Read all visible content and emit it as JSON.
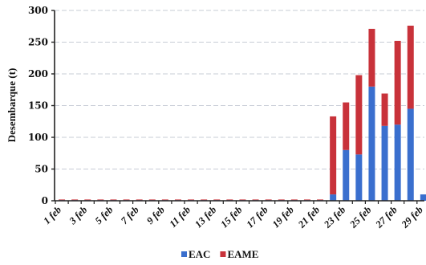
{
  "chart_data": {
    "type": "bar",
    "stacked": true,
    "title": "",
    "xlabel": "",
    "ylabel": "Desembarque (t)",
    "ylim": [
      0,
      300
    ],
    "yticks": [
      0,
      50,
      100,
      150,
      200,
      250,
      300
    ],
    "grid": true,
    "legend_position": "bottom",
    "x_tick_labels": [
      "1 feb",
      "3 feb",
      "5 feb",
      "7 feb",
      "9 feb",
      "11 feb",
      "13 feb",
      "15 feb",
      "17 feb",
      "19 feb",
      "21 feb",
      "23 feb",
      "25 feb",
      "27 feb",
      "29 feb"
    ],
    "categories": [
      "1 feb",
      "2 feb",
      "3 feb",
      "4 feb",
      "5 feb",
      "6 feb",
      "7 feb",
      "8 feb",
      "9 feb",
      "10 feb",
      "11 feb",
      "12 feb",
      "13 feb",
      "14 feb",
      "15 feb",
      "16 feb",
      "17 feb",
      "18 feb",
      "19 feb",
      "20 feb",
      "21 feb",
      "22 feb",
      "23 feb",
      "24 feb",
      "25 feb",
      "26 feb",
      "27 feb",
      "28 feb",
      "29 feb"
    ],
    "series": [
      {
        "name": "EAC",
        "color": "#3a6fce",
        "values": [
          1,
          1,
          1,
          1,
          1,
          1,
          1,
          1,
          1,
          1,
          1,
          1,
          1,
          1,
          1,
          1,
          1,
          1,
          1,
          1,
          1,
          10,
          80,
          73,
          180,
          118,
          120,
          145,
          10
        ]
      },
      {
        "name": "EAME",
        "color": "#c8323a",
        "values": [
          1,
          1,
          1,
          1,
          1,
          1,
          1,
          1,
          1,
          1,
          1,
          1,
          1,
          1,
          1,
          1,
          1,
          1,
          1,
          1,
          1,
          123,
          75,
          125,
          91,
          51,
          132,
          131,
          0
        ]
      }
    ]
  }
}
